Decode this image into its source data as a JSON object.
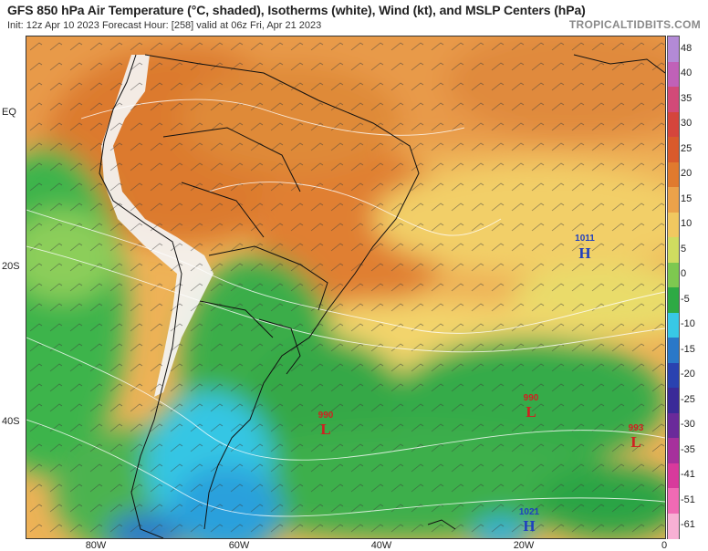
{
  "header": {
    "title": "GFS 850 hPa Air Temperature (°C, shaded), Isotherms (white), Wind (kt), and MSLP Centers (hPa)",
    "subtitle": "Init: 12z Apr 10 2023   Forecast Hour: [258]   valid at 06z Fri, Apr 21 2023",
    "brand": "TROPICALTIDBITS.COM"
  },
  "axes": {
    "lat_labels": [
      "EQ",
      "20S",
      "40S"
    ],
    "lon_labels": [
      "80W",
      "60W",
      "40W",
      "20W",
      "0"
    ]
  },
  "colorbar": {
    "ticks": [
      "48",
      "40",
      "35",
      "30",
      "25",
      "20",
      "15",
      "10",
      "5",
      "0",
      "-5",
      "-10",
      "-15",
      "-20",
      "-25",
      "-30",
      "-35",
      "-41",
      "-51",
      "-61"
    ],
    "colors": [
      "#b38ad6",
      "#c061b8",
      "#d24a78",
      "#d5453c",
      "#d95a2c",
      "#e07a2e",
      "#eba24a",
      "#f1c860",
      "#cfdc60",
      "#7ec850",
      "#2eaa44",
      "#38c8e6",
      "#2a78c8",
      "#2a42b0",
      "#3a2a98",
      "#6a2a9a",
      "#a6309c",
      "#d83a9c",
      "#f06ab4",
      "#f8b0d4"
    ]
  },
  "pressure_centers": [
    {
      "type": "H",
      "value": "1011",
      "color": "#1f3fbf"
    },
    {
      "type": "L",
      "value": "990",
      "color": "#d02020"
    },
    {
      "type": "L",
      "value": "990",
      "color": "#d02020"
    },
    {
      "type": "L",
      "value": "993",
      "color": "#d02020"
    },
    {
      "type": "H",
      "value": "1021",
      "color": "#1f3fbf"
    }
  ]
}
